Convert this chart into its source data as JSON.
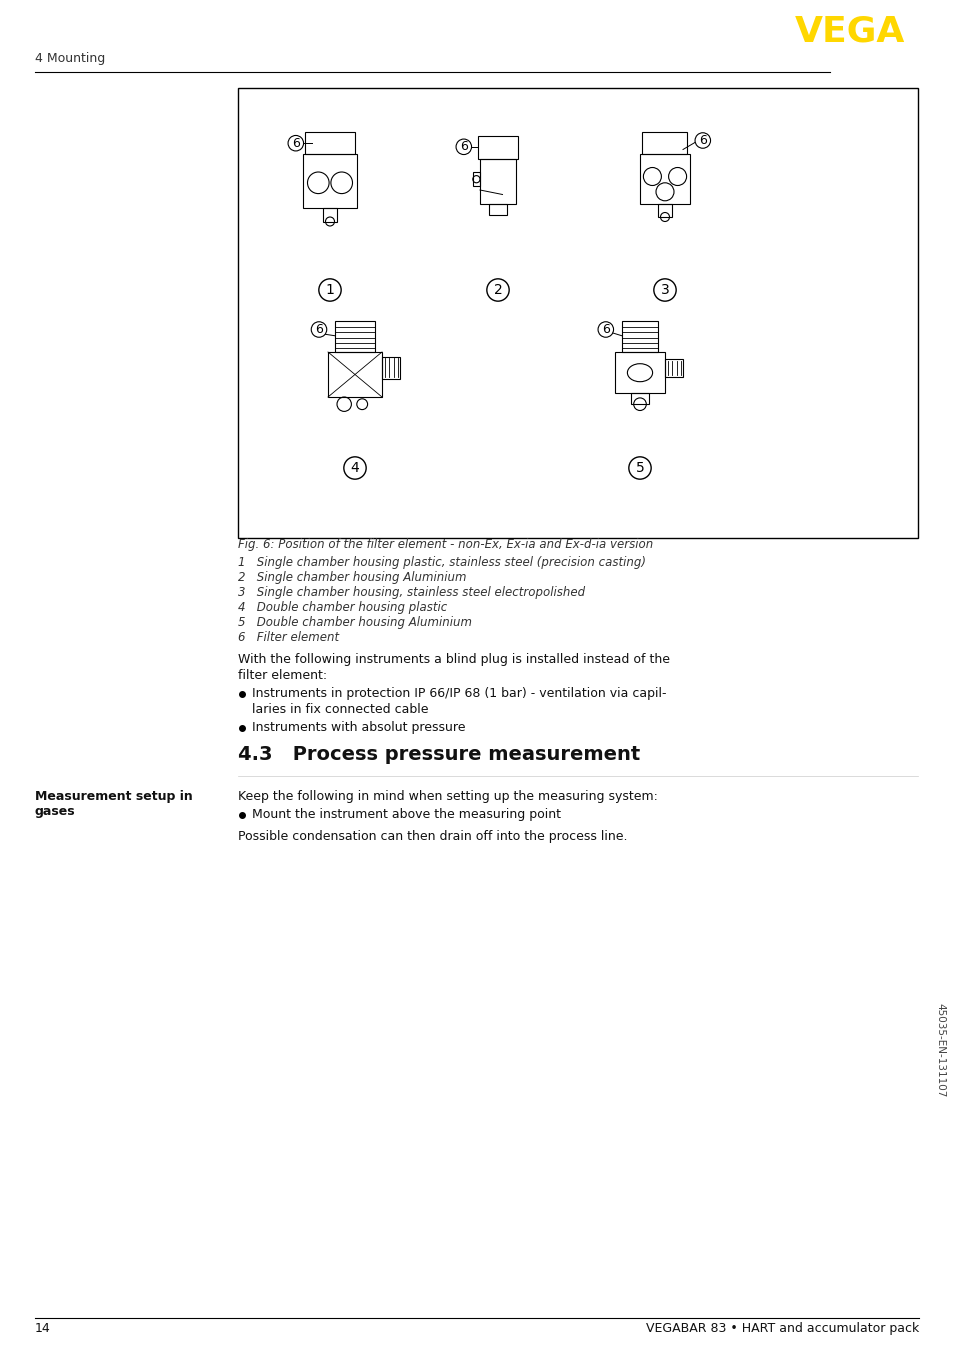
{
  "page_number": "14",
  "footer_text": "VEGABAR 83 • HART and accumulator pack",
  "header_section": "4 Mounting",
  "vega_logo": "VEGA",
  "vega_color": "#FFD700",
  "section_title": "4.3   Process pressure measurement",
  "fig_caption": "Fig. 6: Position of the filter element - non-Ex, Ex-ia and Ex-d-ia version",
  "fig_items": [
    "1   Single chamber housing plastic, stainless steel (precision casting)",
    "2   Single chamber housing Aluminium",
    "3   Single chamber housing, stainless steel electropolished",
    "4   Double chamber housing plastic",
    "5   Double chamber housing Aluminium",
    "6   Filter element"
  ],
  "blind_plug_text": "With the following instruments a blind plug is installed instead of the filter element:",
  "bullet_items": [
    "Instruments in protection IP 66/IP 68 (1 bar) - ventilation via capillaries in fix connected cable",
    "Instruments with absolut pressure"
  ],
  "setup_label": "Measurement setup in gases",
  "setup_text": "Keep the following in mind when setting up the measuring system:",
  "setup_bullet": "Mount the instrument above the measuring point",
  "condensation_text": "Possible condensation can then drain off into the process line.",
  "side_text": "45035-EN-131107",
  "bg_color": "#FFFFFF",
  "text_color": "#000000"
}
